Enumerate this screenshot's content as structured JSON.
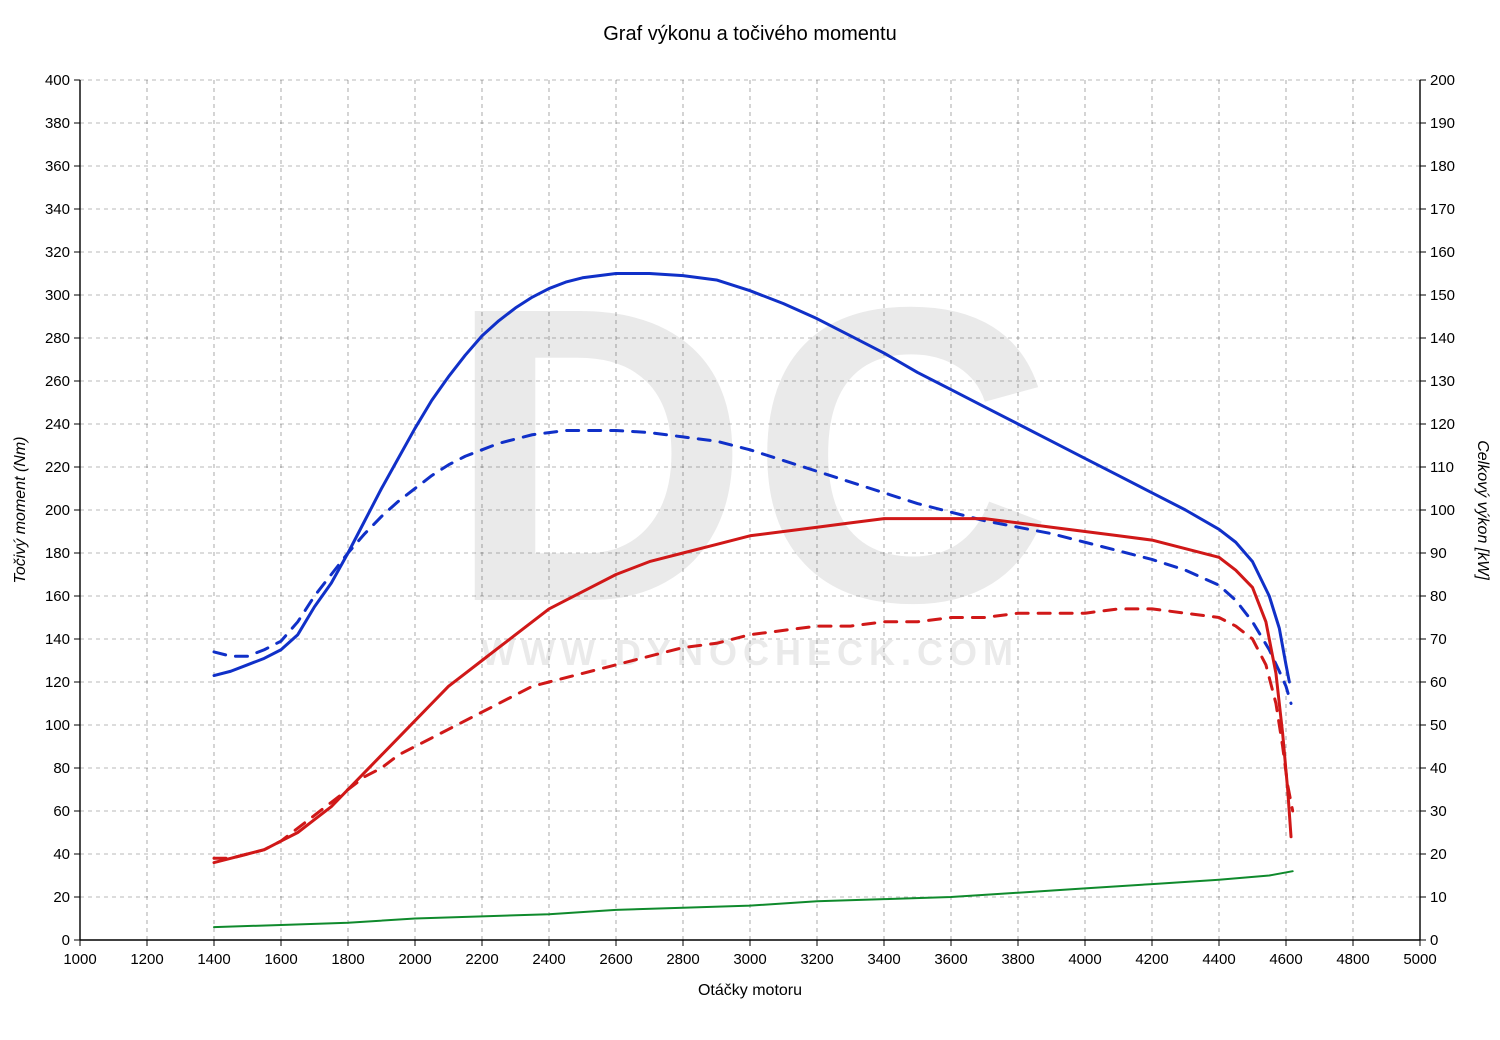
{
  "chart": {
    "type": "line",
    "title": "Graf výkonu a točivého momentu",
    "title_fontsize": 20,
    "plot_background": "#ffffff",
    "grid_color": "#000000",
    "grid_dash": "4 4",
    "axis_border_color": "#000000",
    "font_color": "#000000",
    "tick_fontsize": 15,
    "axis_title_fontsize": 16,
    "x": {
      "label": "Otáčky motoru",
      "min": 1000,
      "max": 5000,
      "tick_step": 200
    },
    "y_left": {
      "label": "Točivý moment (Nm)",
      "min": 0,
      "max": 400,
      "tick_step": 20
    },
    "y_right": {
      "label": "Celkový výkon [kW]",
      "min": 0,
      "max": 200,
      "tick_step": 10
    },
    "watermark_big": "DC",
    "watermark_url": "WWW.DYNOCHECK.COM",
    "line_width_main": 3,
    "line_width_thin": 2,
    "series": [
      {
        "name": "torque_tuned",
        "axis": "left",
        "color": "#1030c8",
        "dash": null,
        "width": 3,
        "points": [
          [
            1400,
            123
          ],
          [
            1450,
            125
          ],
          [
            1500,
            128
          ],
          [
            1550,
            131
          ],
          [
            1600,
            135
          ],
          [
            1650,
            142
          ],
          [
            1700,
            155
          ],
          [
            1750,
            166
          ],
          [
            1800,
            180
          ],
          [
            1850,
            195
          ],
          [
            1900,
            210
          ],
          [
            1950,
            224
          ],
          [
            2000,
            238
          ],
          [
            2050,
            251
          ],
          [
            2100,
            262
          ],
          [
            2150,
            272
          ],
          [
            2200,
            281
          ],
          [
            2250,
            288
          ],
          [
            2300,
            294
          ],
          [
            2350,
            299
          ],
          [
            2400,
            303
          ],
          [
            2450,
            306
          ],
          [
            2500,
            308
          ],
          [
            2550,
            309
          ],
          [
            2600,
            310
          ],
          [
            2700,
            310
          ],
          [
            2800,
            309
          ],
          [
            2900,
            307
          ],
          [
            3000,
            302
          ],
          [
            3100,
            296
          ],
          [
            3200,
            289
          ],
          [
            3300,
            281
          ],
          [
            3400,
            273
          ],
          [
            3500,
            264
          ],
          [
            3600,
            256
          ],
          [
            3700,
            248
          ],
          [
            3800,
            240
          ],
          [
            3900,
            232
          ],
          [
            4000,
            224
          ],
          [
            4100,
            216
          ],
          [
            4200,
            208
          ],
          [
            4300,
            200
          ],
          [
            4400,
            191
          ],
          [
            4450,
            185
          ],
          [
            4500,
            176
          ],
          [
            4550,
            160
          ],
          [
            4580,
            145
          ],
          [
            4600,
            128
          ],
          [
            4610,
            120
          ]
        ]
      },
      {
        "name": "torque_stock",
        "axis": "left",
        "color": "#1030c8",
        "dash": "12 10",
        "width": 3,
        "points": [
          [
            1400,
            134
          ],
          [
            1450,
            132
          ],
          [
            1500,
            132
          ],
          [
            1550,
            135
          ],
          [
            1600,
            139
          ],
          [
            1650,
            148
          ],
          [
            1700,
            160
          ],
          [
            1750,
            170
          ],
          [
            1800,
            180
          ],
          [
            1850,
            189
          ],
          [
            1900,
            197
          ],
          [
            1950,
            204
          ],
          [
            2000,
            210
          ],
          [
            2050,
            216
          ],
          [
            2100,
            221
          ],
          [
            2150,
            225
          ],
          [
            2200,
            228
          ],
          [
            2250,
            231
          ],
          [
            2300,
            233
          ],
          [
            2350,
            235
          ],
          [
            2400,
            236
          ],
          [
            2450,
            237
          ],
          [
            2500,
            237
          ],
          [
            2600,
            237
          ],
          [
            2700,
            236
          ],
          [
            2800,
            234
          ],
          [
            2900,
            232
          ],
          [
            3000,
            228
          ],
          [
            3100,
            223
          ],
          [
            3200,
            218
          ],
          [
            3300,
            213
          ],
          [
            3400,
            208
          ],
          [
            3500,
            203
          ],
          [
            3600,
            199
          ],
          [
            3700,
            195
          ],
          [
            3800,
            192
          ],
          [
            3900,
            189
          ],
          [
            4000,
            185
          ],
          [
            4100,
            181
          ],
          [
            4200,
            177
          ],
          [
            4300,
            172
          ],
          [
            4400,
            165
          ],
          [
            4450,
            158
          ],
          [
            4500,
            148
          ],
          [
            4550,
            135
          ],
          [
            4580,
            125
          ],
          [
            4600,
            118
          ],
          [
            4615,
            110
          ]
        ]
      },
      {
        "name": "power_tuned",
        "axis": "right",
        "color": "#d01818",
        "dash": null,
        "width": 3,
        "points": [
          [
            1400,
            18
          ],
          [
            1450,
            19
          ],
          [
            1500,
            20
          ],
          [
            1550,
            21
          ],
          [
            1600,
            23
          ],
          [
            1650,
            25
          ],
          [
            1700,
            28
          ],
          [
            1750,
            31
          ],
          [
            1800,
            35
          ],
          [
            1850,
            39
          ],
          [
            1900,
            43
          ],
          [
            1950,
            47
          ],
          [
            2000,
            51
          ],
          [
            2050,
            55
          ],
          [
            2100,
            59
          ],
          [
            2150,
            62
          ],
          [
            2200,
            65
          ],
          [
            2250,
            68
          ],
          [
            2300,
            71
          ],
          [
            2350,
            74
          ],
          [
            2400,
            77
          ],
          [
            2450,
            79
          ],
          [
            2500,
            81
          ],
          [
            2600,
            85
          ],
          [
            2700,
            88
          ],
          [
            2800,
            90
          ],
          [
            2900,
            92
          ],
          [
            3000,
            94
          ],
          [
            3100,
            95
          ],
          [
            3200,
            96
          ],
          [
            3300,
            97
          ],
          [
            3400,
            98
          ],
          [
            3500,
            98
          ],
          [
            3600,
            98
          ],
          [
            3700,
            98
          ],
          [
            3800,
            97
          ],
          [
            3900,
            96
          ],
          [
            4000,
            95
          ],
          [
            4100,
            94
          ],
          [
            4200,
            93
          ],
          [
            4300,
            91
          ],
          [
            4400,
            89
          ],
          [
            4450,
            86
          ],
          [
            4500,
            82
          ],
          [
            4540,
            74
          ],
          [
            4570,
            62
          ],
          [
            4590,
            48
          ],
          [
            4605,
            35
          ],
          [
            4615,
            24
          ]
        ]
      },
      {
        "name": "power_stock",
        "axis": "right",
        "color": "#d01818",
        "dash": "12 10",
        "width": 3,
        "points": [
          [
            1400,
            19
          ],
          [
            1450,
            19
          ],
          [
            1500,
            20
          ],
          [
            1550,
            21
          ],
          [
            1600,
            23
          ],
          [
            1650,
            26
          ],
          [
            1700,
            29
          ],
          [
            1750,
            32
          ],
          [
            1800,
            35
          ],
          [
            1850,
            38
          ],
          [
            1900,
            40
          ],
          [
            1950,
            43
          ],
          [
            2000,
            45
          ],
          [
            2050,
            47
          ],
          [
            2100,
            49
          ],
          [
            2150,
            51
          ],
          [
            2200,
            53
          ],
          [
            2250,
            55
          ],
          [
            2300,
            57
          ],
          [
            2350,
            59
          ],
          [
            2400,
            60
          ],
          [
            2450,
            61
          ],
          [
            2500,
            62
          ],
          [
            2600,
            64
          ],
          [
            2700,
            66
          ],
          [
            2800,
            68
          ],
          [
            2900,
            69
          ],
          [
            3000,
            71
          ],
          [
            3100,
            72
          ],
          [
            3200,
            73
          ],
          [
            3300,
            73
          ],
          [
            3400,
            74
          ],
          [
            3500,
            74
          ],
          [
            3600,
            75
          ],
          [
            3700,
            75
          ],
          [
            3800,
            76
          ],
          [
            3900,
            76
          ],
          [
            4000,
            76
          ],
          [
            4100,
            77
          ],
          [
            4200,
            77
          ],
          [
            4300,
            76
          ],
          [
            4400,
            75
          ],
          [
            4450,
            73
          ],
          [
            4500,
            70
          ],
          [
            4540,
            64
          ],
          [
            4570,
            55
          ],
          [
            4590,
            45
          ],
          [
            4605,
            36
          ],
          [
            4620,
            30
          ]
        ]
      },
      {
        "name": "losses",
        "axis": "right",
        "color": "#0f8a2c",
        "dash": null,
        "width": 2,
        "points": [
          [
            1400,
            3
          ],
          [
            1600,
            3.5
          ],
          [
            1800,
            4
          ],
          [
            2000,
            5
          ],
          [
            2200,
            5.5
          ],
          [
            2400,
            6
          ],
          [
            2600,
            7
          ],
          [
            2800,
            7.5
          ],
          [
            3000,
            8
          ],
          [
            3200,
            9
          ],
          [
            3400,
            9.5
          ],
          [
            3600,
            10
          ],
          [
            3800,
            11
          ],
          [
            4000,
            12
          ],
          [
            4200,
            13
          ],
          [
            4400,
            14
          ],
          [
            4550,
            15
          ],
          [
            4620,
            16
          ]
        ]
      }
    ]
  }
}
